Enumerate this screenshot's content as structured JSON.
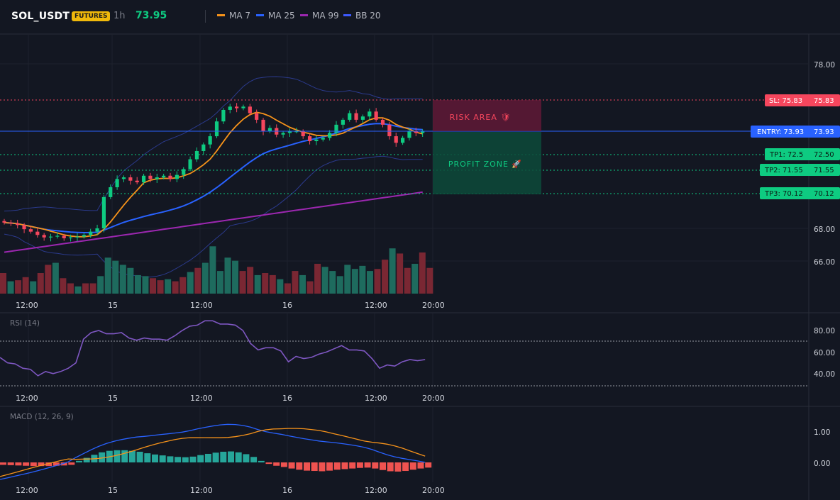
{
  "header": {
    "symbol": "SOL_USDT",
    "badge": "FUTURES",
    "timeframe": "1h",
    "price": "73.95",
    "legend": [
      {
        "label": "MA 7",
        "color": "#f7931a"
      },
      {
        "label": "MA 25",
        "color": "#2962ff"
      },
      {
        "label": "MA 99",
        "color": "#9c27b0"
      },
      {
        "label": "BB 20",
        "color": "#3d5afe"
      }
    ]
  },
  "main_axis": {
    "ticks": [
      "78.00",
      "68.00",
      "66.00"
    ]
  },
  "time_axis": {
    "labels": [
      "12:00",
      "15",
      "12:00",
      "16",
      "12:00",
      "20:00"
    ]
  },
  "levels": {
    "sl": {
      "label": "SL: 75.83",
      "value": "75.83"
    },
    "entry": {
      "label": "ENTRY: 73.93",
      "value": "73.93"
    },
    "tp1": {
      "label": "TP1: 72.5",
      "value": "72.50"
    },
    "tp2": {
      "label": "TP2: 71.55",
      "value": "71.55"
    },
    "tp3": {
      "label": "TP3: 70.12",
      "value": "70.12"
    }
  },
  "zones": {
    "risk": "RISK AREA 🛡",
    "profit": "PROFIT ZONE 🚀"
  },
  "rsi": {
    "title": "RSI (14)",
    "ticks": [
      "80.00",
      "60.00",
      "40.00"
    ]
  },
  "macd": {
    "title": "MACD (12, 26, 9)",
    "ticks": [
      "1.00",
      "0.00"
    ]
  },
  "colors": {
    "up": "#26a69a",
    "down": "#ef5350",
    "candle_up": "#0ecb81",
    "candle_down": "#f6465d",
    "background": "#131722"
  },
  "chart_data": {
    "type": "candlestick",
    "y_range": [
      65,
      79.5
    ],
    "series": [
      {
        "name": "MA 7"
      },
      {
        "name": "MA 25"
      },
      {
        "name": "MA 99"
      },
      {
        "name": "BB 20"
      }
    ],
    "rsi_values": [
      55,
      50,
      49,
      45,
      44,
      38,
      42,
      40,
      42,
      45,
      50,
      72,
      78,
      80,
      77,
      77,
      78,
      73,
      71,
      73,
      72,
      72,
      71,
      75,
      80,
      84,
      85,
      89,
      89,
      86,
      86,
      85,
      80,
      68,
      62,
      64,
      64,
      61,
      51,
      56,
      54,
      55,
      58,
      60,
      63,
      66,
      62,
      62,
      61,
      54,
      45,
      48,
      47,
      51,
      53,
      52,
      53
    ],
    "macd_hist": [
      -0.08,
      -0.09,
      -0.1,
      -0.11,
      -0.12,
      -0.12,
      -0.12,
      -0.11,
      -0.1,
      -0.08,
      0.05,
      0.15,
      0.25,
      0.33,
      0.38,
      0.4,
      0.4,
      0.38,
      0.35,
      0.3,
      0.26,
      0.23,
      0.2,
      0.18,
      0.17,
      0.19,
      0.24,
      0.28,
      0.32,
      0.35,
      0.36,
      0.33,
      0.27,
      0.18,
      0.05,
      -0.05,
      -0.11,
      -0.15,
      -0.2,
      -0.24,
      -0.27,
      -0.28,
      -0.29,
      -0.27,
      -0.24,
      -0.22,
      -0.2,
      -0.18,
      -0.17,
      -0.2,
      -0.25,
      -0.29,
      -0.3,
      -0.28,
      -0.24,
      -0.2,
      -0.17
    ],
    "volume": [
      20,
      12,
      13,
      16,
      12,
      20,
      28,
      30,
      15,
      10,
      7,
      10,
      10,
      17,
      35,
      32,
      28,
      25,
      18,
      17,
      15,
      13,
      14,
      12,
      16,
      21,
      25,
      30,
      46,
      22,
      35,
      32,
      22,
      26,
      18,
      20,
      18,
      14,
      10,
      22,
      18,
      12,
      29,
      26,
      22,
      17,
      28,
      24,
      27,
      22,
      24,
      33,
      44,
      39,
      25,
      29,
      40,
      25
    ]
  }
}
